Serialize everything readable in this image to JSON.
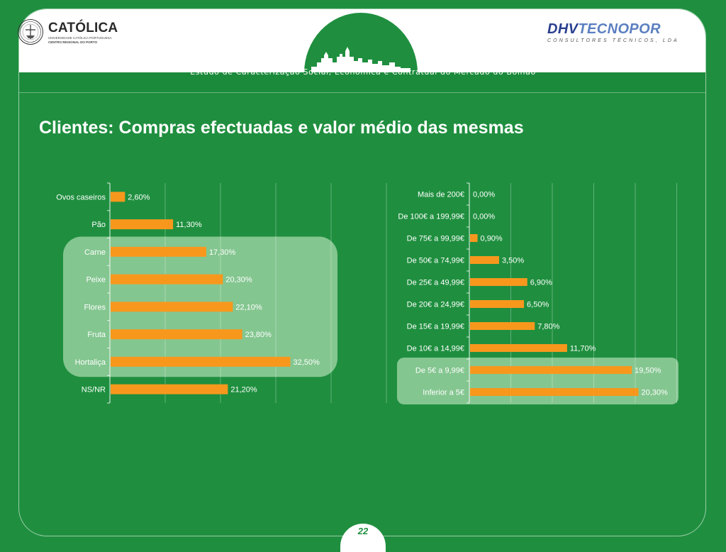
{
  "header": {
    "catolica_title": "CATÓLICA",
    "catolica_line1": "UNIVERSIDADE CATÓLICA PORTUGUESA",
    "catolica_line2": "CENTRO REGIONAL DO PORTO",
    "dhv_part1": "DHV",
    "dhv_part2": "TECNOPOR",
    "dhv_sub": "CONSULTORES TÉCNICOS, LDA",
    "subtitle": "Estudo de Caracterização Social, Económica e Contratual do Mercado do Bolhão"
  },
  "page_title": "Clientes: Compras efectuadas e valor médio das mesmas",
  "page_number": "22",
  "colors": {
    "background": "#1f8f3f",
    "bar": "#f7981d",
    "highlight": "#8fcc99"
  },
  "chart_data": [
    {
      "type": "bar",
      "orientation": "horizontal",
      "categories": [
        "Ovos caseiros",
        "Pão",
        "Carne",
        "Peixe",
        "Flores",
        "Fruta",
        "Hortaliça",
        "NS/NR"
      ],
      "values": [
        2.6,
        11.3,
        17.3,
        20.3,
        22.1,
        23.8,
        32.5,
        21.2
      ],
      "data_labels": [
        "2,60%",
        "11,30%",
        "17,30%",
        "20,30%",
        "22,10%",
        "23,80%",
        "32,50%",
        "21,20%"
      ],
      "highlighted_categories": [
        "Carne",
        "Peixe",
        "Flores",
        "Fruta",
        "Hortaliça"
      ],
      "xlim": [
        0,
        50
      ],
      "grid": true
    },
    {
      "type": "bar",
      "orientation": "horizontal",
      "categories": [
        "Mais de 200€",
        "De 100€ a 199,99€",
        "De 75€ a 99,99€",
        "De 50€ a 74,99€",
        "De 25€ a 49,99€",
        "De 20€ a 24,99€",
        "De 15€ a 19,99€",
        "De 10€ a 14,99€",
        "De 5€ a 9,99€",
        "Inferior a 5€"
      ],
      "values": [
        0.0,
        0.0,
        0.9,
        3.5,
        6.9,
        6.5,
        7.8,
        11.7,
        19.5,
        20.3
      ],
      "data_labels": [
        "0,00%",
        "0,00%",
        "0,90%",
        "3,50%",
        "6,90%",
        "6,50%",
        "7,80%",
        "11,70%",
        "19,50%",
        "20,30%"
      ],
      "highlighted_categories": [
        "De 5€ a 9,99€",
        "Inferior a 5€"
      ],
      "xlim": [
        0,
        25
      ],
      "grid": true
    }
  ]
}
